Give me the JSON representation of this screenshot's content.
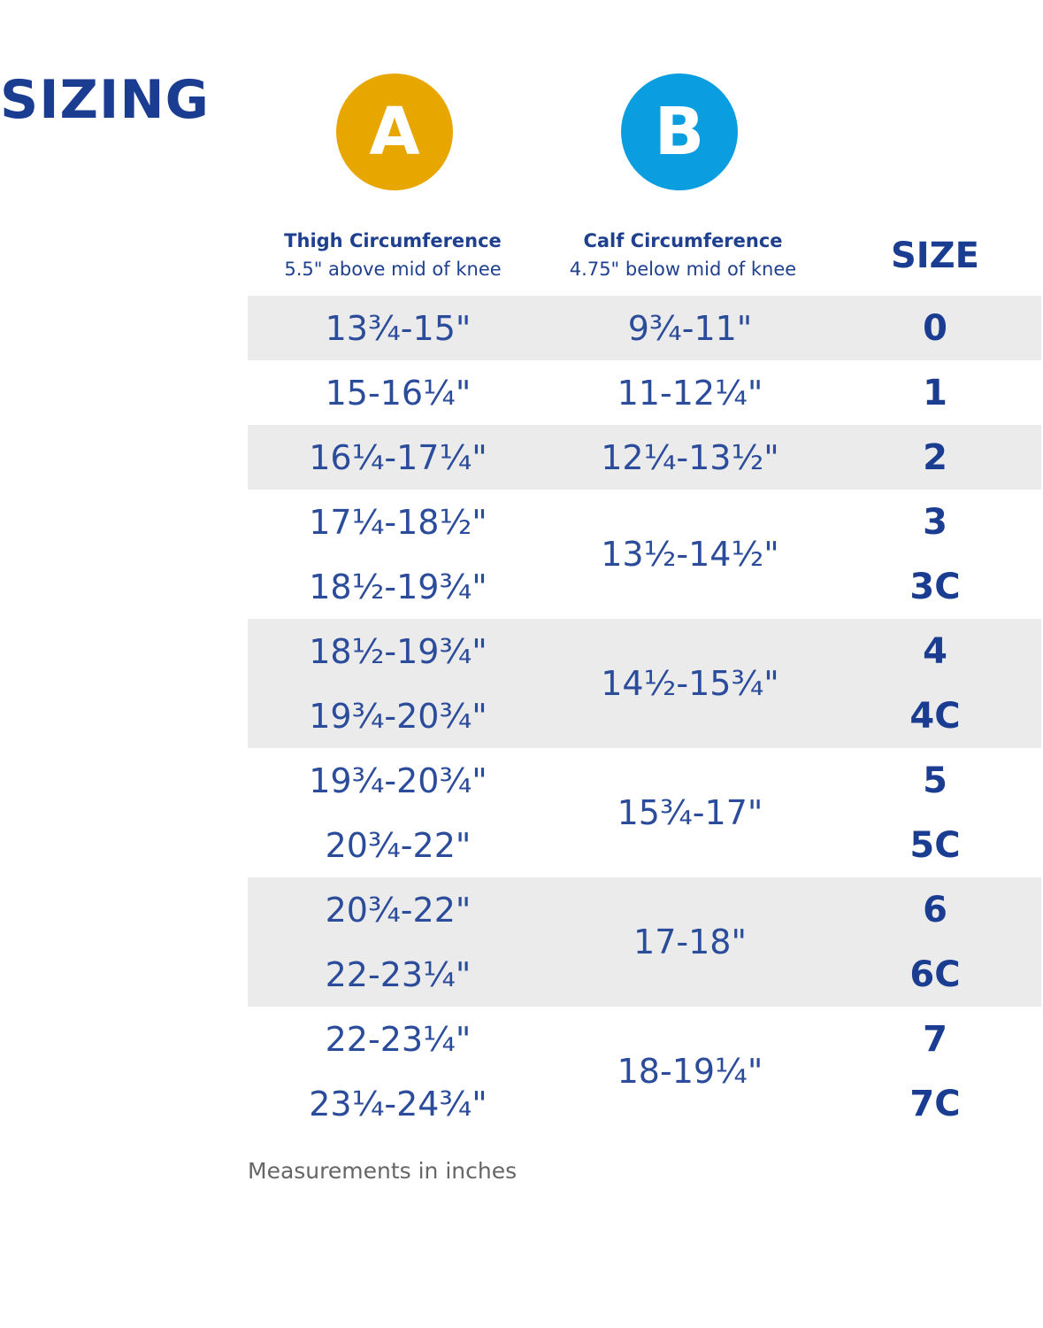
{
  "title": "SIZING",
  "badges": [
    "A",
    "B"
  ],
  "columns": [
    {
      "label": "Thigh Circumference",
      "note": "5.5\" above mid of knee"
    },
    {
      "label": "Calf Circumference",
      "note": "4.75\" below mid of knee"
    },
    {
      "label": "SIZE"
    }
  ],
  "groups": [
    {
      "calf": "9¾-11\"",
      "rows": [
        {
          "thigh": "13¾-15\"",
          "size": "0"
        }
      ]
    },
    {
      "calf": "11-12¼\"",
      "rows": [
        {
          "thigh": "15-16¼\"",
          "size": "1"
        }
      ]
    },
    {
      "calf": "12¼-13½\"",
      "rows": [
        {
          "thigh": "16¼-17¼\"",
          "size": "2"
        }
      ]
    },
    {
      "calf": "13½-14½\"",
      "rows": [
        {
          "thigh": "17¼-18½\"",
          "size": "3"
        },
        {
          "thigh": "18½-19¾\"",
          "size": "3C"
        }
      ]
    },
    {
      "calf": "14½-15¾\"",
      "rows": [
        {
          "thigh": "18½-19¾\"",
          "size": "4"
        },
        {
          "thigh": "19¾-20¾\"",
          "size": "4C"
        }
      ]
    },
    {
      "calf": "15¾-17\"",
      "rows": [
        {
          "thigh": "19¾-20¾\"",
          "size": "5"
        },
        {
          "thigh": "20¾-22\"",
          "size": "5C"
        }
      ]
    },
    {
      "calf": "17-18\"",
      "rows": [
        {
          "thigh": "20¾-22\"",
          "size": "6"
        },
        {
          "thigh": "22-23¼\"",
          "size": "6C"
        }
      ]
    },
    {
      "calf": "18-19¼\"",
      "rows": [
        {
          "thigh": "22-23¼\"",
          "size": "7"
        },
        {
          "thigh": "23¼-24¾\"",
          "size": "7C"
        }
      ]
    }
  ],
  "footnote": "Measurements in inches"
}
